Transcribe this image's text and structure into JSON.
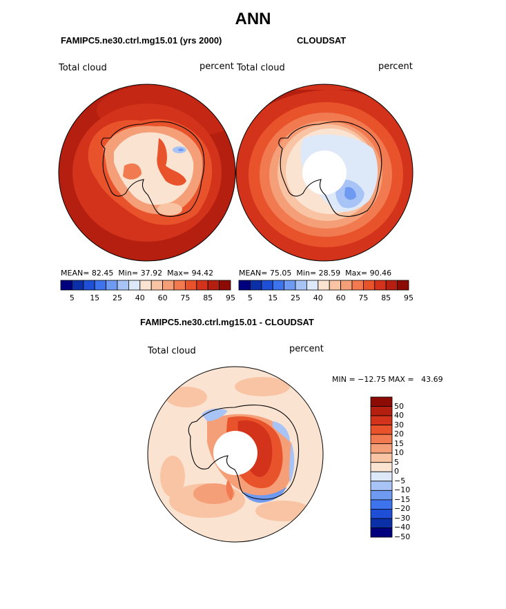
{
  "title": "ANN",
  "panels": [
    {
      "subtitle": "FAMIPC5.ne30.ctrl.mg15.01 (yrs 2000)",
      "left_label": "Total cloud",
      "right_label": "percent",
      "stats": {
        "mean_label": "MEAN=",
        "mean": "82.45",
        "min_label": "Min=",
        "min": "37.92",
        "max_label": "Max=",
        "max": "94.42"
      }
    },
    {
      "subtitle": "CLOUDSAT",
      "left_label": "Total cloud",
      "right_label": "percent",
      "stats": {
        "mean_label": "MEAN=",
        "mean": "75.05",
        "min_label": "Min=",
        "min": "28.59",
        "max_label": "Max=",
        "max": "90.46"
      }
    }
  ],
  "abs_colorbar": {
    "colors": [
      "#00007f",
      "#0b2fa6",
      "#1f4fd6",
      "#3e73ee",
      "#6f9af2",
      "#a8c3f5",
      "#dde9f8",
      "#fbe3d2",
      "#f9c4a4",
      "#f59f78",
      "#f17a50",
      "#e9532b",
      "#d2331a",
      "#b51f10",
      "#8c0c05"
    ],
    "tick_labels": [
      "5",
      "15",
      "25",
      "40",
      "60",
      "75",
      "85",
      "95"
    ]
  },
  "diff_panel": {
    "subtitle": "FAMIPC5.ne30.ctrl.mg15.01 - CLOUDSAT",
    "left_label": "Total cloud",
    "right_label": "percent",
    "range_text": "MIN = −12.75 MAX =   43.69"
  },
  "diff_colorbar": {
    "colors_top_to_bottom": [
      "#8c0c05",
      "#b51f10",
      "#d2331a",
      "#e9532b",
      "#f17a50",
      "#f59f78",
      "#f9c4a4",
      "#fbe3d2",
      "#dde9f8",
      "#a8c3f5",
      "#6f9af2",
      "#3e73ee",
      "#1f4fd6",
      "#0b2fa6",
      "#00007f"
    ],
    "tick_labels": [
      "50",
      "40",
      "30",
      "20",
      "15",
      "10",
      "5",
      "0",
      "−5",
      "−10",
      "−15",
      "−20",
      "−30",
      "−40",
      "−50"
    ]
  },
  "colors": {
    "antarctica_outline": "#000000",
    "missing": "#ffffff"
  }
}
